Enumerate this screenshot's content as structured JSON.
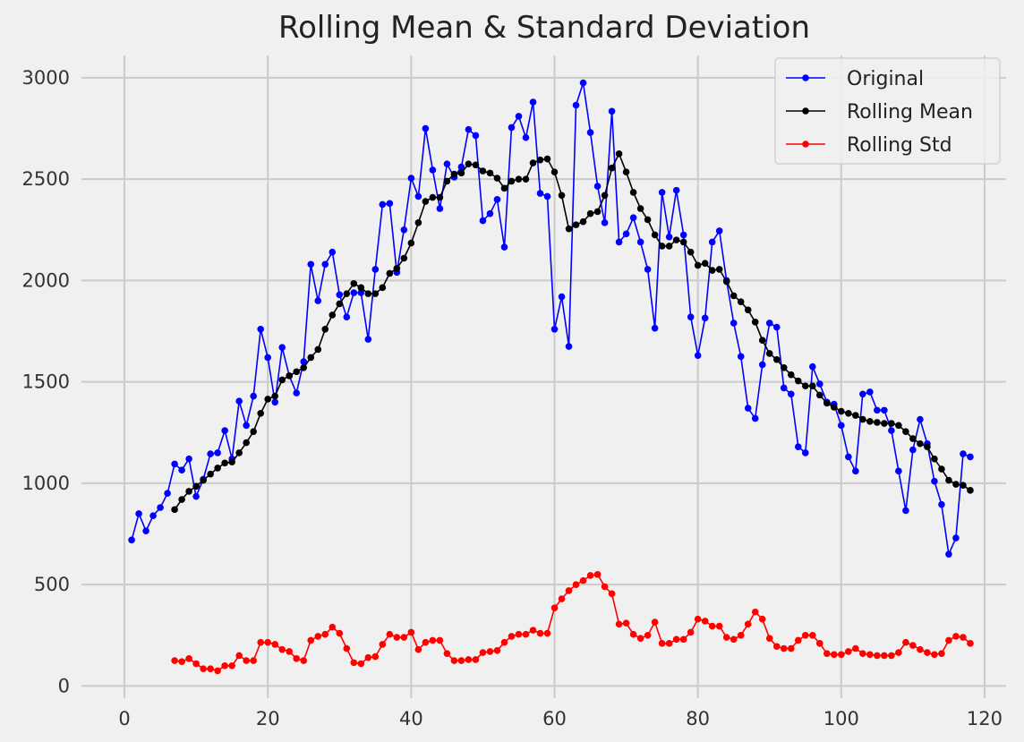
{
  "chart_data": {
    "type": "line",
    "title": "Rolling Mean & Standard Deviation",
    "xlabel": "",
    "ylabel": "",
    "xlim": [
      -6,
      123
    ],
    "ylim": [
      -60,
      3110
    ],
    "xticks": [
      0,
      20,
      40,
      60,
      80,
      100,
      120
    ],
    "yticks": [
      0,
      500,
      1000,
      1500,
      2000,
      2500,
      3000
    ],
    "grid": true,
    "legend": "top-right",
    "series": [
      {
        "name": "Original",
        "color": "#0000ff",
        "x": [
          1,
          2,
          3,
          4,
          5,
          6,
          7,
          8,
          9,
          10,
          11,
          12,
          13,
          14,
          15,
          16,
          17,
          18,
          19,
          20,
          21,
          22,
          23,
          24,
          25,
          26,
          27,
          28,
          29,
          30,
          31,
          32,
          33,
          34,
          35,
          36,
          37,
          38,
          39,
          40,
          41,
          42,
          43,
          44,
          45,
          46,
          47,
          48,
          49,
          50,
          51,
          52,
          53,
          54,
          55,
          56,
          57,
          58,
          59,
          60,
          61,
          62,
          63,
          64,
          65,
          66,
          67,
          68,
          69,
          70,
          71,
          72,
          73,
          74,
          75,
          76,
          77,
          78,
          79,
          80,
          81,
          82,
          83,
          84,
          85,
          86,
          87,
          88,
          89,
          90,
          91,
          92,
          93,
          94,
          95,
          96,
          97,
          98,
          99,
          100,
          101,
          102,
          103,
          104,
          105,
          106,
          107,
          108,
          109,
          110,
          111,
          112,
          113,
          114,
          115,
          116,
          117,
          118
        ],
        "y": [
          720,
          850,
          765,
          840,
          880,
          950,
          1095,
          1065,
          1120,
          935,
          1020,
          1145,
          1150,
          1260,
          1120,
          1405,
          1285,
          1430,
          1760,
          1620,
          1400,
          1670,
          1530,
          1445,
          1600,
          2080,
          1900,
          2080,
          2140,
          1930,
          1820,
          1940,
          1940,
          1710,
          2055,
          2375,
          2380,
          2040,
          2250,
          2505,
          2415,
          2750,
          2545,
          2355,
          2575,
          2510,
          2560,
          2745,
          2715,
          2295,
          2330,
          2400,
          2165,
          2755,
          2810,
          2705,
          2880,
          2430,
          2415,
          1760,
          1920,
          1675,
          2865,
          2975,
          2730,
          2465,
          2285,
          2835,
          2190,
          2230,
          2310,
          2190,
          2055,
          1765,
          2435,
          2215,
          2445,
          2225,
          1820,
          1630,
          1815,
          2190,
          2245,
          2000,
          1790,
          1625,
          1370,
          1320,
          1585,
          1790,
          1770,
          1470,
          1440,
          1180,
          1150,
          1575,
          1490,
          1400,
          1390,
          1285,
          1130,
          1060,
          1440,
          1450,
          1360,
          1360,
          1260,
          1060,
          865,
          1165,
          1315,
          1195,
          1010,
          895,
          650,
          730,
          1145,
          1130
        ]
      },
      {
        "name": "Rolling Mean",
        "color": "#000000",
        "x": [
          7,
          8,
          9,
          10,
          11,
          12,
          13,
          14,
          15,
          16,
          17,
          18,
          19,
          20,
          21,
          22,
          23,
          24,
          25,
          26,
          27,
          28,
          29,
          30,
          31,
          32,
          33,
          34,
          35,
          36,
          37,
          38,
          39,
          40,
          41,
          42,
          43,
          44,
          45,
          46,
          47,
          48,
          49,
          50,
          51,
          52,
          53,
          54,
          55,
          56,
          57,
          58,
          59,
          60,
          61,
          62,
          63,
          64,
          65,
          66,
          67,
          68,
          69,
          70,
          71,
          72,
          73,
          74,
          75,
          76,
          77,
          78,
          79,
          80,
          81,
          82,
          83,
          84,
          85,
          86,
          87,
          88,
          89,
          90,
          91,
          92,
          93,
          94,
          95,
          96,
          97,
          98,
          99,
          100,
          101,
          102,
          103,
          104,
          105,
          106,
          107,
          108,
          109,
          110,
          111,
          112,
          113,
          114,
          115,
          116,
          117,
          118
        ],
        "y": [
          870,
          920,
          960,
          985,
          1015,
          1045,
          1075,
          1100,
          1105,
          1150,
          1200,
          1255,
          1345,
          1415,
          1430,
          1510,
          1530,
          1550,
          1570,
          1620,
          1660,
          1760,
          1830,
          1885,
          1935,
          1985,
          1965,
          1935,
          1935,
          1965,
          2035,
          2060,
          2110,
          2185,
          2285,
          2390,
          2410,
          2410,
          2490,
          2525,
          2530,
          2575,
          2570,
          2540,
          2530,
          2505,
          2455,
          2490,
          2500,
          2500,
          2580,
          2595,
          2600,
          2535,
          2420,
          2255,
          2275,
          2290,
          2330,
          2340,
          2420,
          2555,
          2625,
          2535,
          2435,
          2355,
          2300,
          2225,
          2170,
          2170,
          2200,
          2190,
          2140,
          2075,
          2085,
          2050,
          2055,
          1995,
          1925,
          1895,
          1855,
          1795,
          1705,
          1640,
          1610,
          1570,
          1535,
          1505,
          1480,
          1480,
          1435,
          1395,
          1375,
          1355,
          1345,
          1335,
          1315,
          1305,
          1300,
          1295,
          1295,
          1285,
          1255,
          1220,
          1195,
          1180,
          1120,
          1070,
          1015,
          995,
          990,
          965
        ]
      },
      {
        "name": "Rolling Std",
        "color": "#ff0000",
        "x": [
          7,
          8,
          9,
          10,
          11,
          12,
          13,
          14,
          15,
          16,
          17,
          18,
          19,
          20,
          21,
          22,
          23,
          24,
          25,
          26,
          27,
          28,
          29,
          30,
          31,
          32,
          33,
          34,
          35,
          36,
          37,
          38,
          39,
          40,
          41,
          42,
          43,
          44,
          45,
          46,
          47,
          48,
          49,
          50,
          51,
          52,
          53,
          54,
          55,
          56,
          57,
          58,
          59,
          60,
          61,
          62,
          63,
          64,
          65,
          66,
          67,
          68,
          69,
          70,
          71,
          72,
          73,
          74,
          75,
          76,
          77,
          78,
          79,
          80,
          81,
          82,
          83,
          84,
          85,
          86,
          87,
          88,
          89,
          90,
          91,
          92,
          93,
          94,
          95,
          96,
          97,
          98,
          99,
          100,
          101,
          102,
          103,
          104,
          105,
          106,
          107,
          108,
          109,
          110,
          111,
          112,
          113,
          114,
          115,
          116,
          117,
          118
        ],
        "y": [
          125,
          120,
          135,
          110,
          85,
          85,
          75,
          100,
          100,
          150,
          125,
          125,
          215,
          215,
          205,
          180,
          170,
          135,
          125,
          225,
          245,
          255,
          290,
          260,
          185,
          115,
          110,
          140,
          145,
          205,
          255,
          240,
          240,
          265,
          180,
          215,
          225,
          225,
          160,
          125,
          125,
          130,
          130,
          165,
          170,
          175,
          215,
          245,
          255,
          255,
          275,
          260,
          260,
          385,
          430,
          470,
          500,
          520,
          545,
          550,
          490,
          455,
          305,
          310,
          255,
          235,
          250,
          315,
          210,
          210,
          230,
          230,
          265,
          330,
          320,
          295,
          295,
          240,
          230,
          250,
          305,
          365,
          330,
          235,
          195,
          185,
          185,
          225,
          250,
          250,
          210,
          160,
          155,
          155,
          170,
          185,
          160,
          155,
          150,
          150,
          150,
          165,
          215,
          200,
          180,
          165,
          155,
          160,
          225,
          245,
          240,
          210
        ]
      }
    ]
  }
}
